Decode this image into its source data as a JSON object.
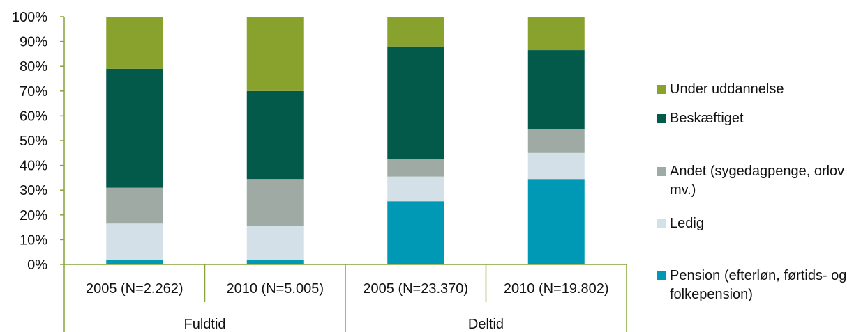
{
  "chart_data": {
    "type": "bar",
    "stacked": true,
    "normalized_percent": true,
    "groups": [
      {
        "label": "Fuldtid",
        "categories": [
          "2005 (N=2.262)",
          "2010 (N=5.005)"
        ]
      },
      {
        "label": "Deltid",
        "categories": [
          "2005 (N=23.370)",
          "2010 (N=19.802)"
        ]
      }
    ],
    "categories": [
      "2005 (N=2.262)",
      "2010 (N=5.005)",
      "2005 (N=23.370)",
      "2010 (N=19.802)"
    ],
    "series": [
      {
        "name": "Pension (efterløn, førtids- og folkepension)",
        "color": "#0099b5",
        "values": [
          2,
          2,
          25.5,
          34.5
        ]
      },
      {
        "name": "Ledig",
        "color": "#d3e0e7",
        "values": [
          14.5,
          13.5,
          10,
          10.5
        ]
      },
      {
        "name": "Andet (sygedagpenge, orlov mv.)",
        "color": "#9eaaa3",
        "values": [
          14.5,
          19,
          7,
          9.5
        ]
      },
      {
        "name": "Beskæftiget",
        "color": "#035a4b",
        "values": [
          48,
          35.5,
          45.5,
          32
        ]
      },
      {
        "name": "Under uddannelse",
        "color": "#88a22d",
        "values": [
          21,
          30,
          12,
          13.5
        ]
      }
    ],
    "legend_order": [
      "Under uddannelse",
      "Beskæftiget",
      "Andet (sygedagpenge, orlov mv.)",
      "Ledig",
      "Pension (efterløn, førtids- og folkepension)"
    ],
    "y_ticks": [
      "0%",
      "10%",
      "20%",
      "30%",
      "40%",
      "50%",
      "60%",
      "70%",
      "80%",
      "90%",
      "100%"
    ],
    "ylim": [
      0,
      100
    ],
    "grid": false,
    "legend_position": "right",
    "title": "",
    "xlabel": "",
    "ylabel": ""
  },
  "legend": {
    "items": [
      {
        "label": "Under uddannelse",
        "color": "#88a22d"
      },
      {
        "label": "Beskæftiget",
        "color": "#035a4b"
      },
      {
        "label": "Andet (sygedagpenge, orlov mv.)",
        "color": "#9eaaa3"
      },
      {
        "label": "Ledig",
        "color": "#d3e0e7"
      },
      {
        "label": "Pension (efterløn, førtids- og folkepension)",
        "color": "#0099b5"
      }
    ]
  }
}
